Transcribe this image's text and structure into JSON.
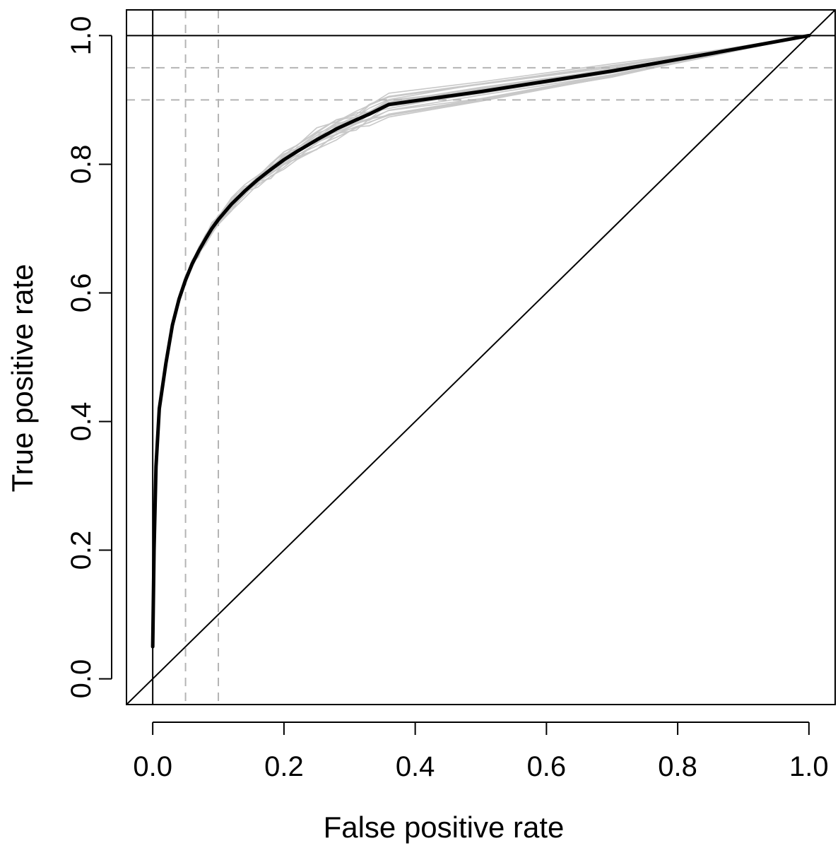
{
  "chart_data": {
    "type": "line",
    "xlabel": "False positive rate",
    "ylabel": "True positive rate",
    "xlim": [
      -0.04,
      1.04
    ],
    "ylim": [
      -0.04,
      1.04
    ],
    "x_ticks": [
      0.0,
      0.2,
      0.4,
      0.6,
      0.8,
      1.0
    ],
    "y_ticks": [
      0.0,
      0.2,
      0.4,
      0.6,
      0.8,
      1.0
    ],
    "x_tick_labels": [
      "0.0",
      "0.2",
      "0.4",
      "0.6",
      "0.8",
      "1.0"
    ],
    "y_tick_labels": [
      "0.0",
      "0.2",
      "0.4",
      "0.6",
      "0.8",
      "1.0"
    ],
    "grid": false,
    "legend": "none",
    "reference_lines": {
      "solid_vertical_x": 0.0,
      "solid_horizontal_y": 1.0,
      "dashed_vertical_x": [
        0.05,
        0.1
      ],
      "dashed_horizontal_y": [
        0.9,
        0.95
      ],
      "diagonal": [
        [
          -0.04,
          -0.04
        ],
        [
          1.04,
          1.04
        ]
      ]
    },
    "series": [
      {
        "values": [
          [
            0.0,
            0.05
          ],
          [
            0.002,
            0.2
          ],
          [
            0.005,
            0.33
          ],
          [
            0.01,
            0.42
          ],
          [
            0.02,
            0.49
          ],
          [
            0.03,
            0.55
          ],
          [
            0.04,
            0.59
          ],
          [
            0.05,
            0.62
          ],
          [
            0.06,
            0.645
          ],
          [
            0.07,
            0.665
          ],
          [
            0.08,
            0.683
          ],
          [
            0.09,
            0.7
          ],
          [
            0.1,
            0.714
          ],
          [
            0.12,
            0.738
          ],
          [
            0.14,
            0.758
          ],
          [
            0.16,
            0.776
          ],
          [
            0.18,
            0.792
          ],
          [
            0.2,
            0.807
          ],
          [
            0.22,
            0.82
          ],
          [
            0.25,
            0.838
          ],
          [
            0.28,
            0.855
          ],
          [
            0.31,
            0.869
          ],
          [
            0.33,
            0.878
          ],
          [
            0.36,
            0.893
          ],
          [
            0.5,
            0.913
          ],
          [
            0.7,
            0.945
          ],
          [
            0.85,
            0.972
          ],
          [
            1.0,
            1.0
          ]
        ]
      }
    ],
    "bootstrap_curve_count": 20,
    "colors": {
      "main_curve": "#000000",
      "bootstrap_curves": "#c8c8c8",
      "dashed_lines": "#b4b4b4",
      "reference_lines": "#000000"
    }
  }
}
